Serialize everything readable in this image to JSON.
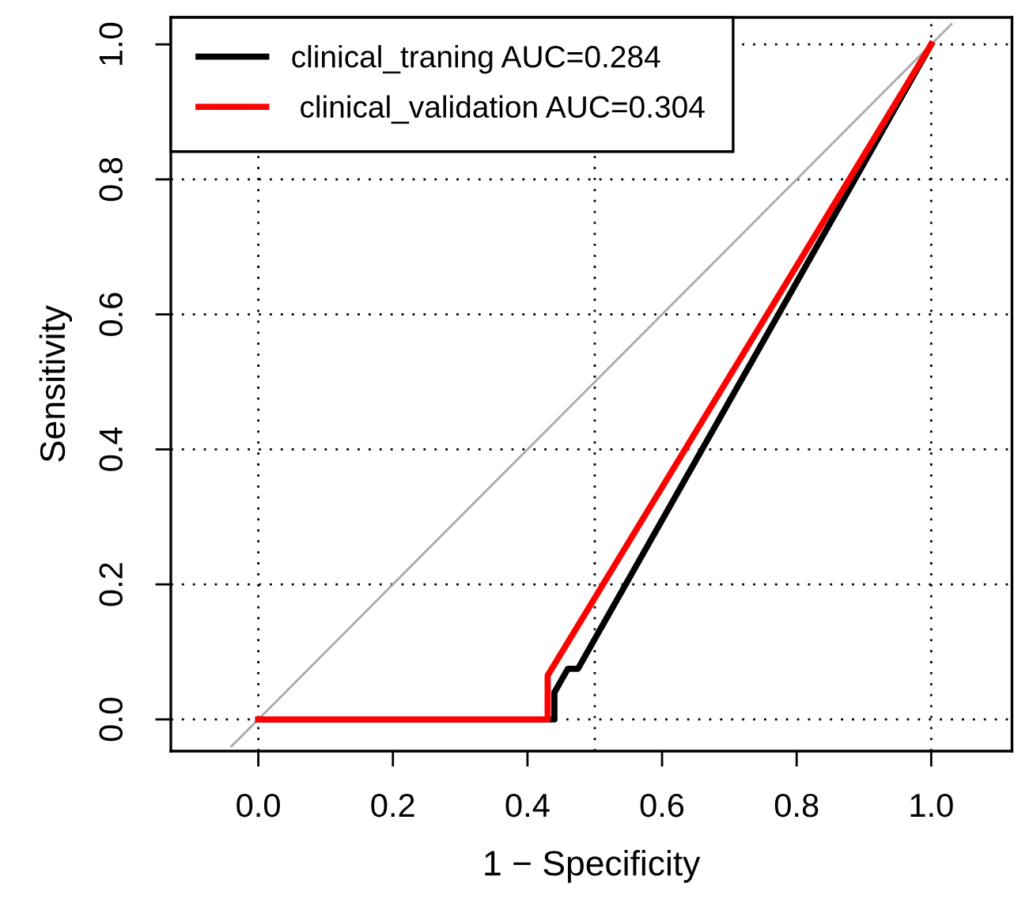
{
  "chart_data": {
    "type": "line",
    "xlabel": "1 − Specificity",
    "ylabel": "Sensitivity",
    "xlim": [
      -0.13,
      1.12
    ],
    "ylim": [
      -0.047,
      1.04
    ],
    "xticks": [
      {
        "value": 0,
        "label": "0.0"
      },
      {
        "value": 0.2,
        "label": "0.2"
      },
      {
        "value": 0.4,
        "label": "0.4"
      },
      {
        "value": 0.6,
        "label": "0.6"
      },
      {
        "value": 0.8,
        "label": "0.8"
      },
      {
        "value": 1,
        "label": "1.0"
      }
    ],
    "yticks": [
      {
        "value": 0,
        "label": "0.0"
      },
      {
        "value": 0.2,
        "label": "0.2"
      },
      {
        "value": 0.4,
        "label": "0.4"
      },
      {
        "value": 0.6,
        "label": "0.6"
      },
      {
        "value": 0.8,
        "label": "0.8"
      },
      {
        "value": 1,
        "label": "1.0"
      }
    ],
    "grid": "y",
    "legend": "top left",
    "marker": "none",
    "line_style": "solid",
    "ref_lines": [
      {
        "axis": "x",
        "value": 0,
        "color": "#000000",
        "line_style": "dotted"
      },
      {
        "axis": "x",
        "value": 0.5,
        "color": "#000000",
        "line_style": "dotted"
      },
      {
        "axis": "x",
        "value": 1,
        "color": "#000000",
        "line_style": "dotted"
      }
    ],
    "series": [
      {
        "color": "#aaaaaa",
        "x": [
          -0.04,
          1.03
        ],
        "values": [
          -0.04,
          1.03
        ]
      },
      {
        "name": "clinical_traning AUC=0.284",
        "color": "#000000",
        "x": [
          0,
          0.44,
          0.44,
          0.46,
          0.475,
          1
        ],
        "values": [
          0,
          0,
          0.04,
          0.075,
          0.075,
          1
        ]
      },
      {
        "name": " clinical_validation AUC=0.304",
        "color": "#ff0000",
        "x": [
          0,
          0.43,
          0.43,
          1
        ],
        "values": [
          0,
          0,
          0.065,
          1
        ]
      }
    ]
  }
}
